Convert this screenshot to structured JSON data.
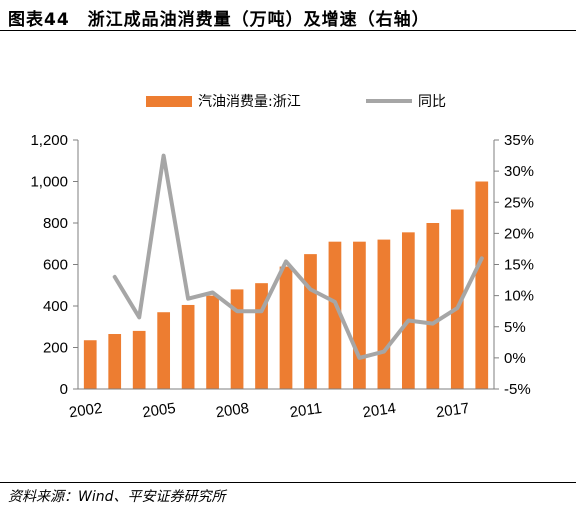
{
  "header": {
    "title": "图表44　浙江成品油消费量（万吨）及增速（右轴）"
  },
  "footer": {
    "source": "资料来源：Wind、平安证券研究所"
  },
  "chart_data": {
    "type": "bar",
    "categories": [
      "2002",
      "2003",
      "2004",
      "2005",
      "2006",
      "2007",
      "2008",
      "2009",
      "2010",
      "2011",
      "2012",
      "2013",
      "2014",
      "2015",
      "2016",
      "2017",
      "2018"
    ],
    "x_tick_labels": [
      "2002",
      "2005",
      "2008",
      "2011",
      "2014",
      "2017"
    ],
    "series": [
      {
        "name": "汽油消费量:浙江",
        "type": "bar",
        "axis": "left",
        "color": "#ED7D31",
        "values": [
          235,
          265,
          280,
          370,
          405,
          450,
          480,
          510,
          590,
          650,
          710,
          710,
          720,
          755,
          800,
          865,
          1000
        ]
      },
      {
        "name": "同比",
        "type": "line",
        "axis": "right",
        "color": "#A6A6A6",
        "values": [
          null,
          13,
          6.5,
          32.5,
          9.5,
          10.5,
          7.5,
          7.5,
          15.5,
          11,
          9,
          0,
          1,
          6,
          5.5,
          8,
          16
        ]
      }
    ],
    "y_left": {
      "min": 0,
      "max": 1200,
      "ticks": [
        "0",
        "200",
        "400",
        "600",
        "800",
        "1,000",
        "1,200"
      ]
    },
    "y_right": {
      "min": -5,
      "max": 35,
      "ticks": [
        "-5%",
        "0%",
        "5%",
        "10%",
        "15%",
        "20%",
        "25%",
        "30%",
        "35%"
      ]
    },
    "legend_position": "top-center",
    "grid": false
  }
}
